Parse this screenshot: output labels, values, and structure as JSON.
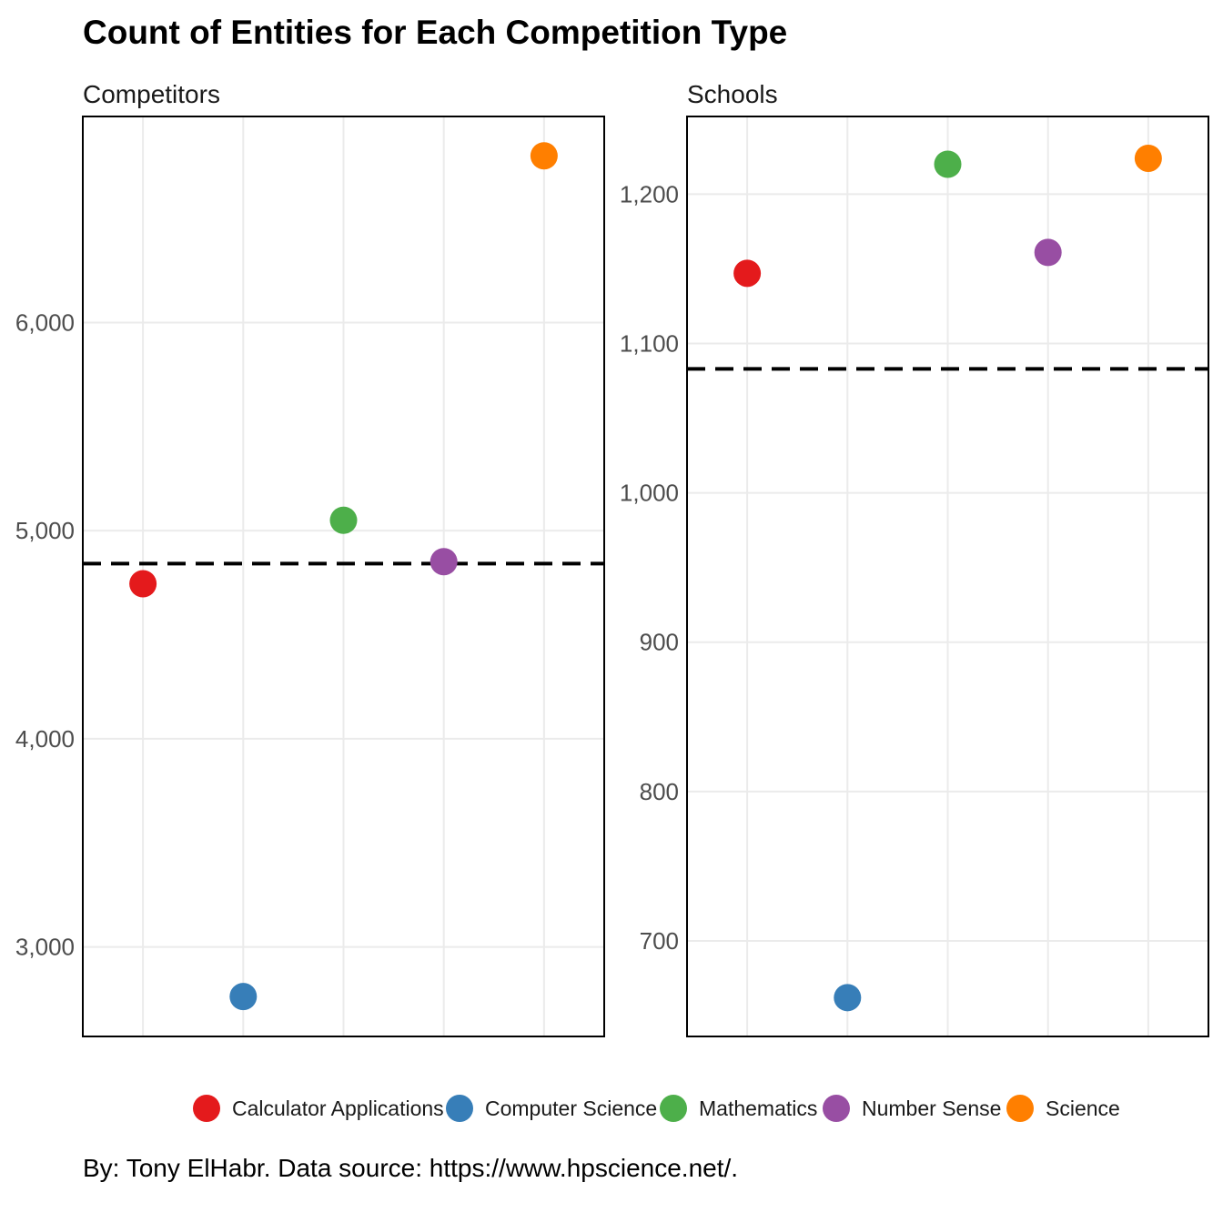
{
  "chart_data": {
    "type": "scatter",
    "title": "Count of Entities for Each Competition Type",
    "caption": "By: Tony ElHabr. Data source: https://www.hpscience.net/.",
    "legend_position": "bottom",
    "categories": [
      "Calculator Applications",
      "Computer Science",
      "Mathematics",
      "Number Sense",
      "Science"
    ],
    "colors": [
      "#e41a1c",
      "#377eb8",
      "#4daf4a",
      "#984ea3",
      "#ff7f00"
    ],
    "grid": true,
    "panels": [
      {
        "label": "Competitors",
        "ylim": [
          2570,
          6990
        ],
        "yticks": [
          3000,
          4000,
          5000,
          6000
        ],
        "yticks_labels": [
          "3,000",
          "4,000",
          "5,000",
          "6,000"
        ],
        "values": [
          4745,
          2762,
          5050,
          4851,
          6801
        ],
        "mean": 4842
      },
      {
        "label": "Schools",
        "ylim": [
          636,
          1252
        ],
        "yticks": [
          700,
          800,
          900,
          1000,
          1100,
          1200
        ],
        "yticks_labels": [
          "700",
          "800",
          "900",
          "1,000",
          "1,100",
          "1,200"
        ],
        "values": [
          1147,
          662,
          1220,
          1161,
          1224
        ],
        "mean": 1083
      }
    ]
  }
}
